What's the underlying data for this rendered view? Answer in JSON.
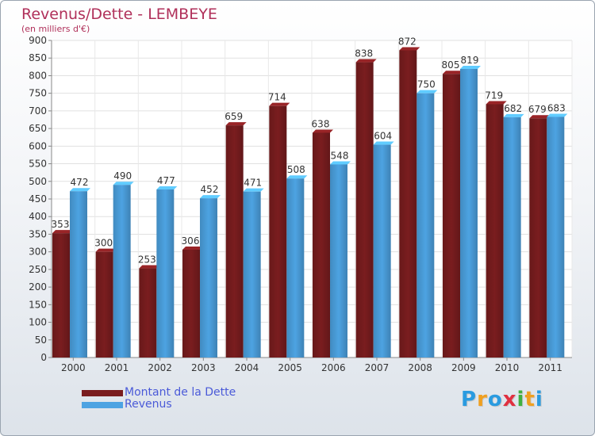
{
  "chart_data": {
    "type": "bar",
    "title": "Revenus/Dette - LEMBEYE",
    "subtitle": "(en milliers d'€)",
    "categories": [
      "2000",
      "2001",
      "2002",
      "2003",
      "2004",
      "2005",
      "2006",
      "2007",
      "2008",
      "2009",
      "2010",
      "2011"
    ],
    "series": [
      {
        "name": "Montant de la Dette",
        "color": "#7a1d1f",
        "values": [
          353,
          300,
          253,
          306,
          659,
          714,
          638,
          838,
          872,
          805,
          719,
          679
        ]
      },
      {
        "name": "Revenus",
        "color": "#4da3e2",
        "values": [
          472,
          490,
          477,
          452,
          471,
          508,
          548,
          604,
          750,
          819,
          682,
          683
        ]
      }
    ],
    "ylim": [
      0,
      900
    ],
    "yticks": [
      0,
      50,
      100,
      150,
      200,
      250,
      300,
      350,
      400,
      450,
      500,
      550,
      600,
      650,
      700,
      750,
      800,
      850,
      900
    ],
    "grid": true,
    "legend_position": "bottom-left"
  },
  "logo": {
    "letters": [
      "P",
      "r",
      "o",
      "x",
      "i",
      "t",
      "i"
    ],
    "colors": [
      "#2a9be0",
      "#f0a020",
      "#2a9be0",
      "#e03040",
      "#40b040",
      "#f0a020",
      "#2a9be0"
    ]
  }
}
